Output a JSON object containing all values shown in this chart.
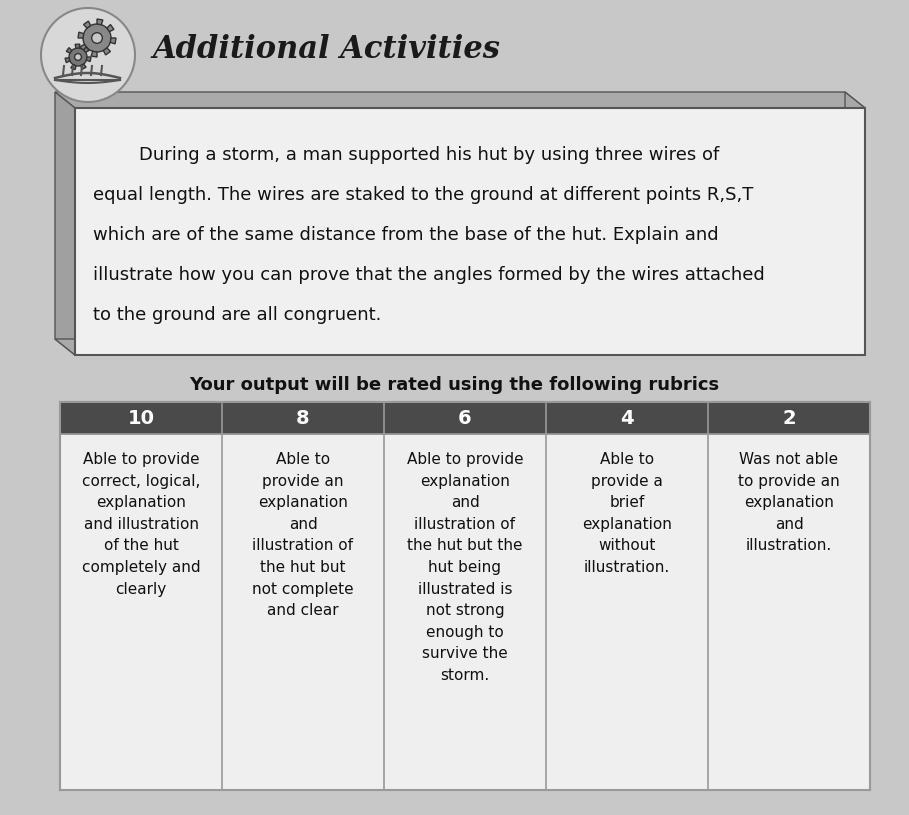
{
  "title": "Additional Activities",
  "title_fontsize": 22,
  "page_bg": "#c8c8c8",
  "problem_text_line1": "        During a storm, a man supported his hut by using three wires of",
  "problem_text_line2": "equal length. The wires are staked to the ground at different points R,S,T",
  "problem_text_line3": "which are of the same distance from the base of the hut. Explain and",
  "problem_text_line4": "illustrate how you can prove that the angles formed by the wires attached",
  "problem_text_line5": "to the ground are all congruent.",
  "rubric_title": "Your output will be rated using the following rubrics",
  "rubric_title_fontsize": 13,
  "columns": [
    "10",
    "8",
    "6",
    "4",
    "2"
  ],
  "header_bg": "#4a4a4a",
  "header_text_color": "#ffffff",
  "cell_bg": "#efefef",
  "cell_border": "#999999",
  "col_texts": [
    "Able to provide\ncorrect, logical,\nexplanation\nand illustration\nof the hut\ncompletely and\nclearly",
    "Able to\nprovide an\nexplanation\nand\nillustration of\nthe hut but\nnot complete\nand clear",
    "Able to provide\nexplanation\nand\nillustration of\nthe hut but the\nhut being\nillustrated is\nnot strong\nenough to\nsurvive the\nstorm.",
    "Able to\nprovide a\nbrief\nexplanation\nwithout\nillustration.",
    "Was not able\nto provide an\nexplanation\nand\nillustration."
  ]
}
